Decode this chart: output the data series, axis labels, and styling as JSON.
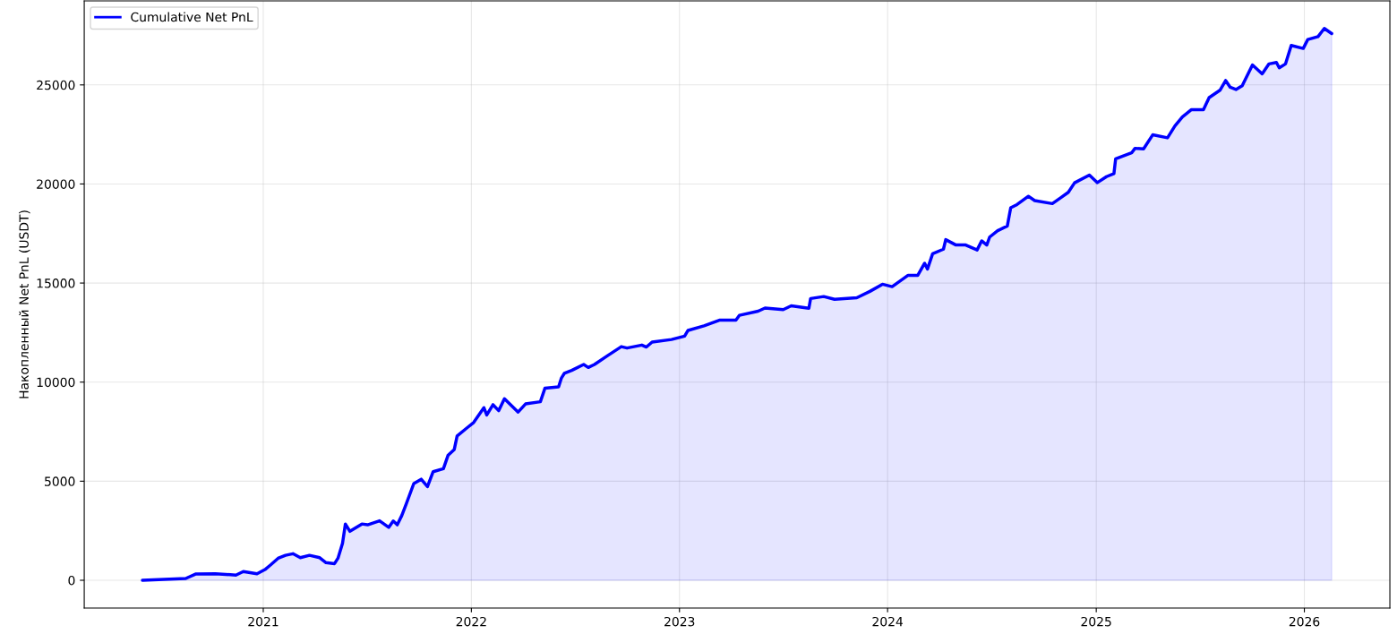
{
  "chart_data": {
    "type": "area",
    "ylabel": "Накопленный Net PnL (USDT)",
    "x": [
      "2020-06-03",
      "2020-08-18",
      "2020-09-05",
      "2020-10-09",
      "2020-11-14",
      "2020-11-27",
      "2020-12-21",
      "2021-01-04",
      "2021-01-14",
      "2021-01-27",
      "2021-02-09",
      "2021-02-22",
      "2021-03-07",
      "2021-03-23",
      "2021-04-10",
      "2021-04-21",
      "2021-05-06",
      "2021-05-12",
      "2021-05-20",
      "2021-05-25",
      "2021-06-02",
      "2021-06-23",
      "2021-07-03",
      "2021-07-24",
      "2021-08-09",
      "2021-08-17",
      "2021-08-24",
      "2021-09-01",
      "2021-09-09",
      "2021-09-22",
      "2021-10-05",
      "2021-10-16",
      "2021-10-26",
      "2021-11-13",
      "2021-11-21",
      "2021-12-02",
      "2021-12-07",
      "2021-12-23",
      "2022-01-05",
      "2022-01-23",
      "2022-01-28",
      "2022-02-08",
      "2022-02-18",
      "2022-02-28",
      "2022-03-24",
      "2022-04-06",
      "2022-05-02",
      "2022-05-10",
      "2022-06-03",
      "2022-06-08",
      "2022-06-13",
      "2022-06-26",
      "2022-07-17",
      "2022-07-25",
      "2022-08-05",
      "2022-08-28",
      "2022-09-21",
      "2022-10-01",
      "2022-10-27",
      "2022-11-04",
      "2022-11-14",
      "2022-12-18",
      "2023-01-10",
      "2023-01-16",
      "2023-02-13",
      "2023-03-13",
      "2023-04-10",
      "2023-04-16",
      "2023-05-19",
      "2023-05-31",
      "2023-07-02",
      "2023-07-16",
      "2023-08-16",
      "2023-08-19",
      "2023-09-11",
      "2023-09-30",
      "2023-11-08",
      "2023-12-01",
      "2023-12-23",
      "2024-01-09",
      "2024-02-06",
      "2024-02-23",
      "2024-03-06",
      "2024-03-11",
      "2024-03-20",
      "2024-04-08",
      "2024-04-12",
      "2024-04-30",
      "2024-05-17",
      "2024-06-06",
      "2024-06-14",
      "2024-06-23",
      "2024-06-28",
      "2024-07-12",
      "2024-07-29",
      "2024-08-04",
      "2024-08-15",
      "2024-09-04",
      "2024-09-15",
      "2024-10-16",
      "2024-10-30",
      "2024-11-13",
      "2024-11-24",
      "2024-12-20",
      "2025-01-03",
      "2025-01-19",
      "2025-02-01",
      "2025-02-04",
      "2025-03-04",
      "2025-03-10",
      "2025-03-25",
      "2025-04-10",
      "2025-05-06",
      "2025-05-19",
      "2025-06-01",
      "2025-06-17",
      "2025-07-08",
      "2025-07-18",
      "2025-08-06",
      "2025-08-16",
      "2025-08-24",
      "2025-09-03",
      "2025-09-14",
      "2025-10-02",
      "2025-10-19",
      "2025-10-31",
      "2025-11-13",
      "2025-11-18",
      "2025-11-29",
      "2025-12-09",
      "2025-12-30",
      "2026-01-07",
      "2026-01-25",
      "2026-02-05",
      "2026-02-18"
    ],
    "series": [
      {
        "name": "Cumulative Net PnL",
        "color": "#0000ff",
        "values": [
          0,
          90,
          320,
          330,
          260,
          440,
          330,
          540,
          780,
          1110,
          1260,
          1340,
          1140,
          1260,
          1140,
          890,
          840,
          1110,
          1860,
          2840,
          2470,
          2840,
          2800,
          3000,
          2670,
          2990,
          2800,
          3270,
          3870,
          4880,
          5100,
          4730,
          5480,
          5630,
          6300,
          6600,
          7280,
          7660,
          7960,
          8710,
          8340,
          8860,
          8560,
          9160,
          8490,
          8900,
          9010,
          9690,
          9760,
          10210,
          10440,
          10590,
          10890,
          10740,
          10890,
          11340,
          11790,
          11720,
          11870,
          11770,
          12020,
          12150,
          12320,
          12610,
          12840,
          13130,
          13130,
          13370,
          13580,
          13740,
          13660,
          13850,
          13730,
          14220,
          14320,
          14180,
          14260,
          14580,
          14940,
          14820,
          15390,
          15390,
          16000,
          15710,
          16480,
          16710,
          17190,
          16920,
          16920,
          16670,
          17130,
          16920,
          17320,
          17640,
          17880,
          18800,
          18960,
          19380,
          19160,
          19010,
          19290,
          19580,
          20060,
          20450,
          20070,
          20370,
          20520,
          21270,
          21570,
          21800,
          21770,
          22480,
          22330,
          22930,
          23380,
          23750,
          23750,
          24360,
          24730,
          25220,
          24880,
          24770,
          24960,
          26010,
          25560,
          26060,
          26130,
          25860,
          26060,
          26990,
          26840,
          27290,
          27440,
          27850,
          27590
        ]
      }
    ],
    "xlim": [
      "2020-02-22",
      "2026-05-31"
    ],
    "xticks": [
      "2021",
      "2022",
      "2023",
      "2024",
      "2025",
      "2026"
    ],
    "ylim": [
      -1400,
      29240
    ],
    "yticks": [
      0,
      5000,
      10000,
      15000,
      20000,
      25000
    ],
    "grid": true,
    "legend": "top left"
  }
}
